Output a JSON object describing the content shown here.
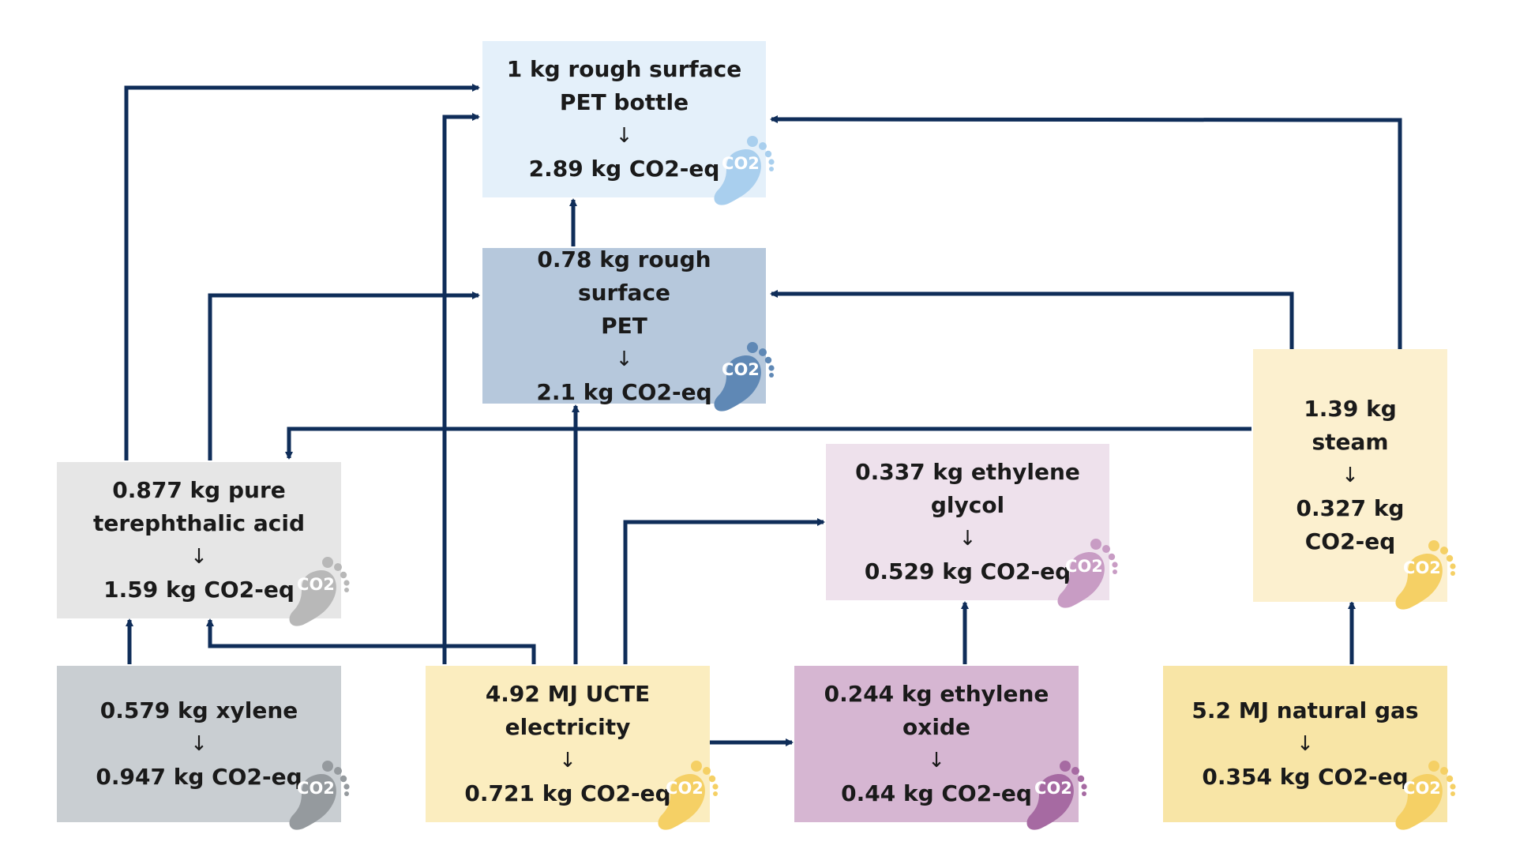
{
  "nodes": {
    "pet_bottle": {
      "title_1": "1 kg rough surface",
      "title_2": "PET bottle",
      "arrow": "↓",
      "value": "2.89 kg CO2-eq",
      "fill": "#e4f0fa",
      "foot_color": "#a9cfee"
    },
    "pet": {
      "title_1": "0.78 kg rough surface",
      "title_2": "PET",
      "arrow": "↓",
      "value": "2.1 kg CO2-eq",
      "fill": "#b6c8dc",
      "foot_color": "#5f88b5"
    },
    "pta": {
      "title_1": "0.877 kg pure",
      "title_2": "terephthalic acid",
      "arrow": "↓",
      "value": "1.59 kg CO2-eq",
      "fill": "#e6e6e6",
      "foot_color": "#b8b8b8"
    },
    "xylene": {
      "title_1": "0.579 kg xylene",
      "arrow": "↓",
      "value": "0.947 kg CO2-eq",
      "fill": "#c9ced2",
      "foot_color": "#959a9e"
    },
    "electricity": {
      "title_1": "4.92 MJ UCTE electricity",
      "arrow": "↓",
      "value": "0.721 kg CO2-eq",
      "fill": "#fbedbf",
      "foot_color": "#f5d065"
    },
    "eg": {
      "title_1": "0.337 kg ethylene glycol",
      "arrow": "↓",
      "value": "0.529 kg CO2-eq",
      "fill": "#eee1ec",
      "foot_color": "#c89cc4"
    },
    "eo": {
      "title_1": "0.244 kg ethylene oxide",
      "arrow": "↓",
      "value": "0.44 kg CO2-eq",
      "fill": "#d6b6d2",
      "foot_color": "#a66aa2"
    },
    "steam": {
      "title_1": "1.39 kg steam",
      "arrow": "↓",
      "value": "0.327 kg CO2-eq",
      "fill": "#fcf0cf",
      "foot_color": "#f5d065"
    },
    "natural_gas": {
      "title_1": "5.2 MJ natural gas",
      "arrow": "↓",
      "value": "0.354 kg CO2-eq",
      "fill": "#f8e5a6",
      "foot_color": "#f5d065"
    }
  },
  "footprint_label": "CO2",
  "connector_color": "#0f2d59"
}
